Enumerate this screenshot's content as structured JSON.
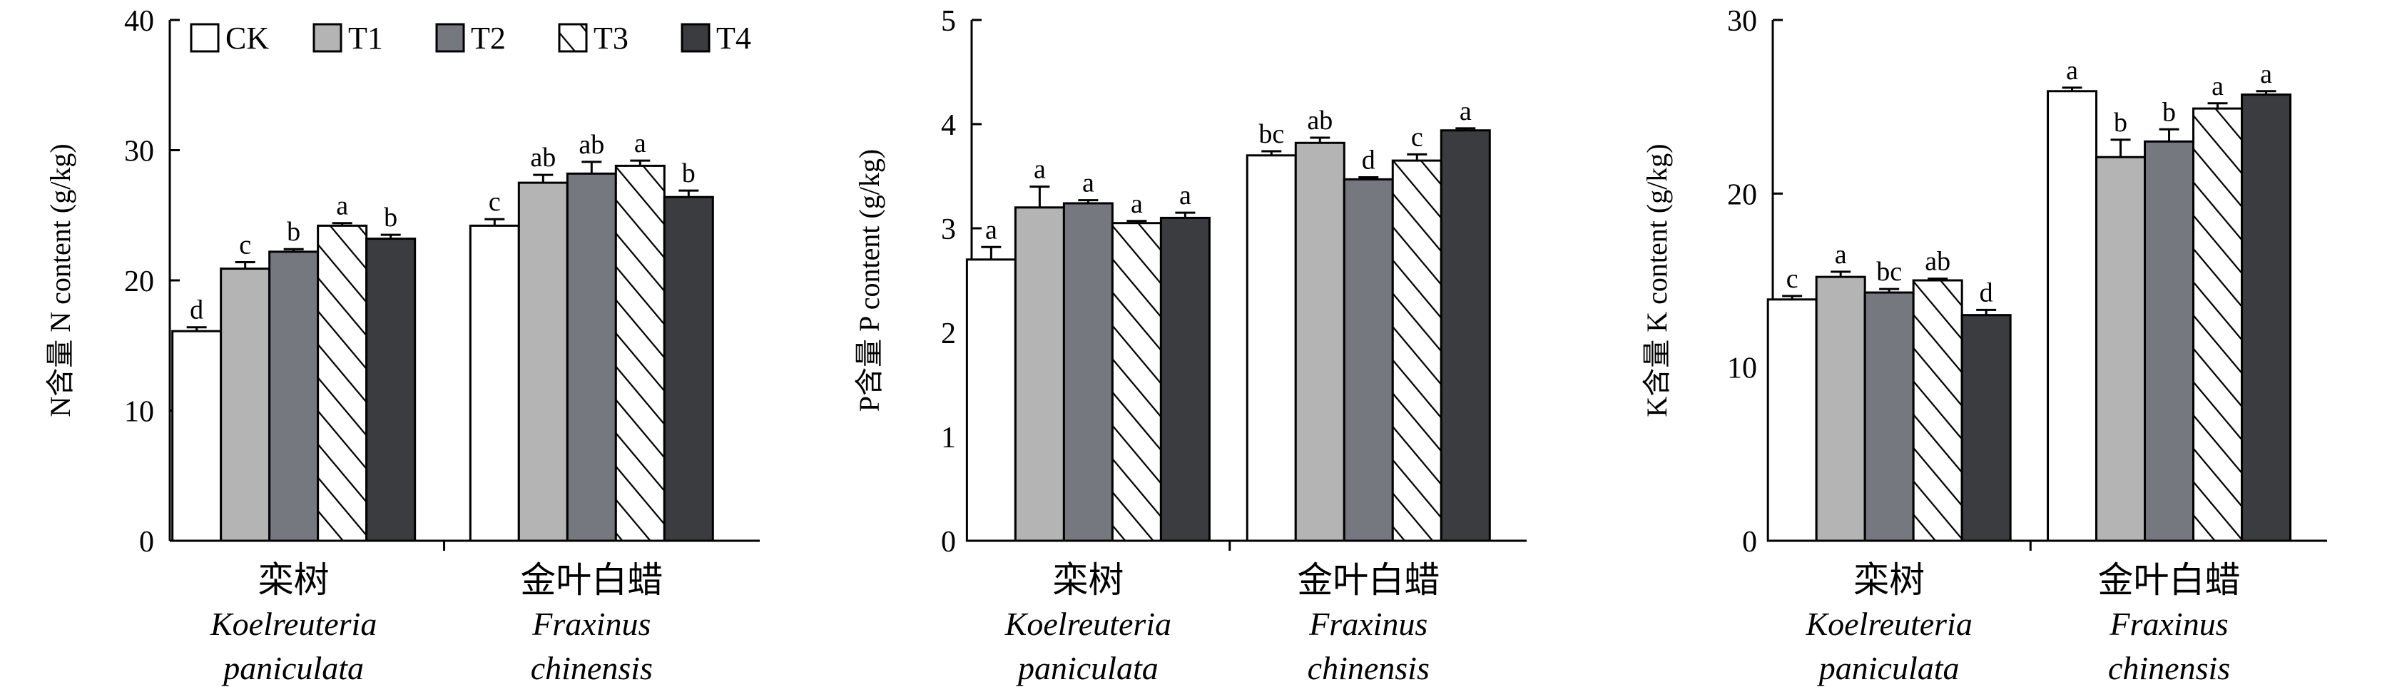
{
  "colors": {
    "CK": "#ffffff",
    "T1": "#b4b4b4",
    "T2": "#767880",
    "T3": "#ffffff",
    "T4": "#3b3c40"
  },
  "legend": [
    {
      "key": "CK",
      "label": "CK",
      "pattern": "solid"
    },
    {
      "key": "T1",
      "label": "T1",
      "pattern": "solid"
    },
    {
      "key": "T2",
      "label": "T2",
      "pattern": "solid"
    },
    {
      "key": "T3",
      "label": "T3",
      "pattern": "hatched"
    },
    {
      "key": "T4",
      "label": "T4",
      "pattern": "solid"
    }
  ],
  "chart_data": [
    {
      "type": "bar",
      "ylabel": "N含量 N content (g/kg)",
      "ylim": [
        0,
        40
      ],
      "yticks": [
        "0",
        "10",
        "20",
        "30",
        "40"
      ],
      "categories": [
        {
          "cn": "栾树",
          "latin1": "Koelreuteria",
          "latin2": "paniculata"
        },
        {
          "cn": "金叶白蜡",
          "latin1": "Fraxinus",
          "latin2": "chinensis"
        }
      ],
      "series": [
        {
          "name": "CK",
          "values": [
            16.1,
            24.2
          ],
          "errors": [
            0.3,
            0.5
          ],
          "labels": [
            "d",
            "c"
          ]
        },
        {
          "name": "T1",
          "values": [
            20.9,
            27.5
          ],
          "errors": [
            0.5,
            0.6
          ],
          "labels": [
            "c",
            "ab"
          ]
        },
        {
          "name": "T2",
          "values": [
            22.2,
            28.2
          ],
          "errors": [
            0.2,
            0.9
          ],
          "labels": [
            "b",
            "ab"
          ]
        },
        {
          "name": "T3",
          "values": [
            24.2,
            28.8
          ],
          "errors": [
            0.2,
            0.4
          ],
          "labels": [
            "a",
            "a"
          ]
        },
        {
          "name": "T4",
          "values": [
            23.2,
            26.4
          ],
          "errors": [
            0.3,
            0.5
          ],
          "labels": [
            "b",
            "b"
          ]
        }
      ]
    },
    {
      "type": "bar",
      "ylabel": "P含量 P content (g/kg)",
      "ylim": [
        0,
        5
      ],
      "yticks": [
        "0",
        "1",
        "2",
        "3",
        "4",
        "5"
      ],
      "categories": [
        {
          "cn": "栾树",
          "latin1": "Koelreuteria",
          "latin2": "paniculata"
        },
        {
          "cn": "金叶白蜡",
          "latin1": "Fraxinus",
          "latin2": "chinensis"
        }
      ],
      "series": [
        {
          "name": "CK",
          "values": [
            2.7,
            3.7
          ],
          "errors": [
            0.12,
            0.04
          ],
          "labels": [
            "a",
            "bc"
          ]
        },
        {
          "name": "T1",
          "values": [
            3.2,
            3.82
          ],
          "errors": [
            0.2,
            0.05
          ],
          "labels": [
            "a",
            "ab"
          ]
        },
        {
          "name": "T2",
          "values": [
            3.24,
            3.47
          ],
          "errors": [
            0.03,
            0.02
          ],
          "labels": [
            "a",
            "d"
          ]
        },
        {
          "name": "T3",
          "values": [
            3.05,
            3.65
          ],
          "errors": [
            0.02,
            0.06
          ],
          "labels": [
            "a",
            "c"
          ]
        },
        {
          "name": "T4",
          "values": [
            3.1,
            3.94
          ],
          "errors": [
            0.05,
            0.02
          ],
          "labels": [
            "a",
            "a"
          ]
        }
      ]
    },
    {
      "type": "bar",
      "ylabel": "K含量 K content (g/kg)",
      "ylim": [
        0,
        30
      ],
      "yticks": [
        "0",
        "10",
        "20",
        "30"
      ],
      "categories": [
        {
          "cn": "栾树",
          "latin1": "Koelreuteria",
          "latin2": "paniculata"
        },
        {
          "cn": "金叶白蜡",
          "latin1": "Fraxinus",
          "latin2": "chinensis"
        }
      ],
      "series": [
        {
          "name": "CK",
          "values": [
            13.9,
            25.9
          ],
          "errors": [
            0.2,
            0.2
          ],
          "labels": [
            "c",
            "a"
          ]
        },
        {
          "name": "T1",
          "values": [
            15.2,
            22.1
          ],
          "errors": [
            0.3,
            1.0
          ],
          "labels": [
            "a",
            "b"
          ]
        },
        {
          "name": "T2",
          "values": [
            14.3,
            23.0
          ],
          "errors": [
            0.2,
            0.7
          ],
          "labels": [
            "bc",
            "b"
          ]
        },
        {
          "name": "T3",
          "values": [
            15.0,
            24.9
          ],
          "errors": [
            0.1,
            0.3
          ],
          "labels": [
            "ab",
            "a"
          ]
        },
        {
          "name": "T4",
          "values": [
            13.0,
            25.7
          ],
          "errors": [
            0.3,
            0.2
          ],
          "labels": [
            "d",
            "a"
          ]
        }
      ]
    }
  ]
}
